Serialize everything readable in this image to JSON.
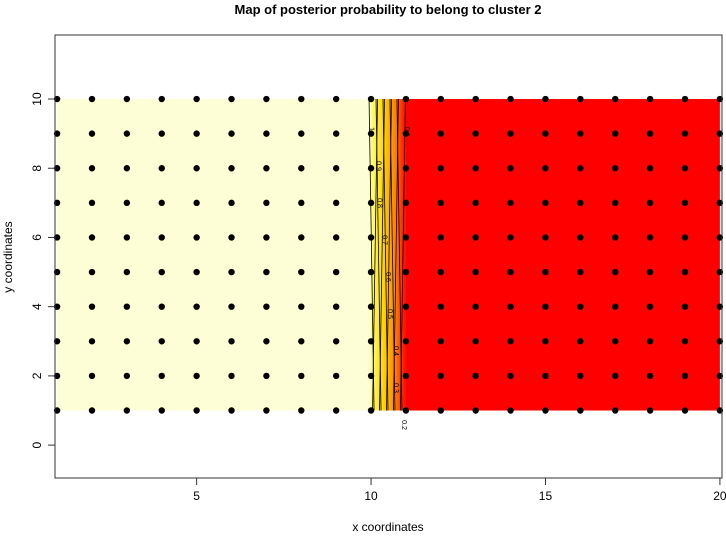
{
  "chart_data": {
    "type": "heatmap",
    "title": "Map of posterior probability to belong to cluster  2",
    "xlabel": "x coordinates",
    "ylabel": "y coordinates",
    "xlim": [
      0.94,
      20.06
    ],
    "ylim": [
      -0.95,
      11.85
    ],
    "xticks": [
      5,
      10,
      15,
      20
    ],
    "yticks": [
      0,
      2,
      4,
      6,
      8,
      10
    ],
    "grid": false,
    "points": {
      "x": [
        1,
        2,
        3,
        4,
        5,
        6,
        7,
        8,
        9,
        10,
        11,
        12,
        13,
        14,
        15,
        16,
        17,
        18,
        19,
        20
      ],
      "y": [
        1,
        2,
        3,
        4,
        5,
        6,
        7,
        8,
        9,
        10
      ]
    },
    "probability_by_x": {
      "x": [
        1,
        10,
        11,
        20
      ],
      "value": [
        1,
        1,
        0,
        0
      ]
    },
    "contour_levels": [
      1,
      0.9,
      0.8,
      0.7,
      0.6,
      0.5,
      0.4,
      0.3,
      0.2,
      0.1
    ],
    "contour_labels": [
      "1",
      "0.9",
      "0.8",
      "0.7",
      "0.6",
      "0.5",
      "0.4",
      "0.3",
      "0.2",
      "0.1"
    ],
    "colors": {
      "high": "#FEFED6",
      "mid": "#FFD700",
      "low": "#FF0000",
      "points": "#000000"
    }
  }
}
